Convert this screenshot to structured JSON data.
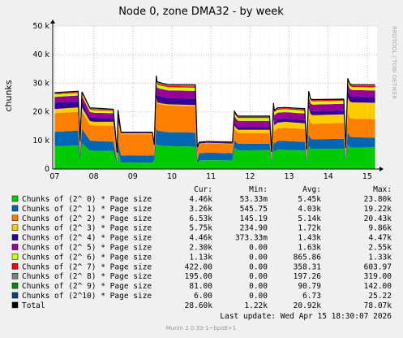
{
  "chart_data": {
    "type": "area",
    "title": "Node 0, zone DMA32 - by week",
    "ylabel": "chunks",
    "ylim": [
      0,
      50000
    ],
    "yticks": [
      0,
      10000,
      20000,
      30000,
      40000,
      50000
    ],
    "ytick_labels": [
      "0",
      "10 k",
      "20 k",
      "30 k",
      "40 k",
      "50 k"
    ],
    "xtick_labels": [
      "07",
      "08",
      "09",
      "10",
      "11",
      "12",
      "13",
      "14",
      "15"
    ],
    "x": [
      7.0,
      7.6,
      7.65,
      7.7,
      7.9,
      8.0,
      8.5,
      8.6,
      8.62,
      8.7,
      8.9,
      9.5,
      9.55,
      9.6,
      9.62,
      9.7,
      9.9,
      10.6,
      10.65,
      10.7,
      10.9,
      11.55,
      11.6,
      11.65,
      11.7,
      12.5,
      12.55,
      12.6,
      12.62,
      12.7,
      12.9,
      13.4,
      13.45,
      13.5,
      13.55,
      13.6,
      14.4,
      14.45,
      14.5,
      14.55,
      14.6,
      15.2
    ],
    "grid": true,
    "series": [
      {
        "name": "Chunks of (2^ 0) * Page size",
        "color": "#00cc00",
        "values": [
          8000,
          8200,
          3000,
          9000,
          6500,
          6400,
          6300,
          1500,
          6000,
          2200,
          2300,
          2200,
          3000,
          9000,
          8500,
          8200,
          8000,
          7800,
          2000,
          3000,
          3100,
          3000,
          7500,
          7000,
          6500,
          6600,
          1800,
          7000,
          6000,
          6800,
          6700,
          6500,
          2000,
          8000,
          7200,
          7000,
          7100,
          2200,
          8500,
          7600,
          7500,
          7600
        ]
      },
      {
        "name": "Chunks of (2^ 1) * Page size",
        "color": "#0066b3",
        "values": [
          5000,
          5200,
          1800,
          5000,
          3500,
          3400,
          3300,
          1000,
          3500,
          2500,
          2500,
          2500,
          1800,
          5500,
          5000,
          5000,
          4900,
          4900,
          1200,
          2500,
          2600,
          2500,
          2500,
          2300,
          2300,
          2300,
          1000,
          3000,
          2800,
          3000,
          3100,
          3000,
          1000,
          4000,
          3500,
          3400,
          3500,
          1200,
          4500,
          3800,
          3700,
          3300
        ]
      },
      {
        "name": "Chunks of (2^ 2) * Page size",
        "color": "#ff8000",
        "values": [
          6500,
          6600,
          2500,
          6000,
          5500,
          5400,
          5500,
          1500,
          5500,
          7500,
          7400,
          7500,
          2500,
          10000,
          9500,
          9400,
          9300,
          9300,
          2500,
          3200,
          3300,
          3200,
          4000,
          3900,
          3800,
          3700,
          1200,
          5000,
          4500,
          4400,
          4600,
          4500,
          1500,
          6000,
          5500,
          5400,
          5500,
          1500,
          7000,
          6500,
          6400,
          6500
        ]
      },
      {
        "name": "Chunks of (2^ 3) * Page size",
        "color": "#ffcc00",
        "values": [
          1500,
          1500,
          500,
          1500,
          1300,
          1300,
          1400,
          400,
          1500,
          300,
          300,
          300,
          200,
          500,
          400,
          400,
          400,
          400,
          100,
          200,
          200,
          200,
          1200,
          1100,
          1100,
          1100,
          400,
          2500,
          2000,
          2000,
          2100,
          2000,
          600,
          3500,
          3000,
          3000,
          3000,
          800,
          5000,
          5800,
          5700,
          5750
        ]
      },
      {
        "name": "Chunks of (2^ 4) * Page size",
        "color": "#330099",
        "values": [
          2200,
          2200,
          700,
          2000,
          1400,
          1400,
          1300,
          400,
          1200,
          150,
          150,
          150,
          300,
          2500,
          2300,
          2300,
          2200,
          2200,
          600,
          300,
          300,
          300,
          1000,
          950,
          950,
          950,
          300,
          1200,
          1100,
          1100,
          1100,
          1100,
          400,
          1500,
          1400,
          1400,
          1400,
          500,
          2500,
          2100,
          2000,
          2000
        ]
      },
      {
        "name": "Chunks of (2^ 5) * Page size",
        "color": "#990099",
        "values": [
          2000,
          2000,
          700,
          2000,
          1800,
          1800,
          1700,
          500,
          1500,
          50,
          50,
          50,
          300,
          3000,
          2800,
          2800,
          2700,
          2700,
          700,
          100,
          100,
          100,
          2300,
          2200,
          2200,
          2200,
          700,
          2500,
          2400,
          2400,
          2300,
          2300,
          800,
          2300,
          2300,
          2300,
          2300,
          700,
          2400,
          2300,
          2300,
          2300
        ]
      },
      {
        "name": "Chunks of (2^ 6) * Page size",
        "color": "#ccff00",
        "values": [
          900,
          900,
          300,
          900,
          800,
          800,
          800,
          200,
          800,
          50,
          50,
          50,
          200,
          1200,
          1100,
          1100,
          1100,
          1100,
          300,
          50,
          50,
          50,
          1000,
          950,
          950,
          950,
          300,
          1100,
          1000,
          1000,
          1000,
          1000,
          300,
          1100,
          1100,
          1100,
          1100,
          300,
          1100,
          1100,
          1100,
          1100
        ]
      },
      {
        "name": "Chunks of (2^ 7) * Page size",
        "color": "#ff0000",
        "values": [
          350,
          350,
          100,
          350,
          330,
          330,
          320,
          100,
          320,
          20,
          20,
          20,
          100,
          500,
          480,
          480,
          470,
          470,
          130,
          20,
          20,
          20,
          400,
          390,
          390,
          390,
          130,
          430,
          420,
          420,
          420,
          420,
          140,
          440,
          430,
          430,
          430,
          140,
          430,
          420,
          420,
          420
        ]
      },
      {
        "name": "Chunks of (2^ 8) * Page size",
        "color": "#808080",
        "values": [
          190,
          190,
          60,
          190,
          180,
          180,
          180,
          60,
          180,
          10,
          10,
          10,
          60,
          260,
          250,
          250,
          250,
          250,
          70,
          10,
          10,
          10,
          210,
          200,
          200,
          200,
          70,
          220,
          210,
          210,
          210,
          210,
          70,
          210,
          200,
          200,
          200,
          70,
          200,
          195,
          195,
          195
        ]
      },
      {
        "name": "Chunks of (2^ 9) * Page size",
        "color": "#008f00",
        "values": [
          90,
          90,
          30,
          90,
          85,
          85,
          85,
          30,
          85,
          5,
          5,
          5,
          30,
          120,
          115,
          115,
          115,
          115,
          30,
          5,
          5,
          5,
          95,
          90,
          90,
          90,
          30,
          100,
          95,
          95,
          95,
          95,
          30,
          90,
          85,
          85,
          85,
          30,
          85,
          82,
          81,
          81
        ]
      },
      {
        "name": "Chunks of (2^10) * Page size",
        "color": "#00487d",
        "values": [
          7,
          7,
          2,
          7,
          6,
          6,
          6,
          2,
          6,
          1,
          1,
          1,
          2,
          10,
          9,
          9,
          9,
          9,
          3,
          1,
          1,
          1,
          7,
          7,
          7,
          7,
          2,
          7,
          7,
          7,
          7,
          7,
          2,
          7,
          7,
          7,
          7,
          2,
          6,
          6,
          6,
          6
        ]
      }
    ],
    "total_line": {
      "name": "Total",
      "color": "#000000",
      "values": [
        26700,
        27200,
        9700,
        27000,
        21400,
        21300,
        20900,
        5700,
        20600,
        12800,
        12800,
        12800,
        8500,
        32600,
        30500,
        30200,
        29500,
        29500,
        7600,
        9400,
        9600,
        9400,
        20200,
        19100,
        18500,
        18500,
        6000,
        23100,
        20500,
        21400,
        21500,
        21100,
        6800,
        27200,
        24500,
        24300,
        24400,
        7400,
        31700,
        29800,
        29500,
        29400
      ]
    }
  },
  "rrdtool_label": "RRDTOOL / TOBI OETIKER",
  "legend_headers": [
    "Cur:",
    "Min:",
    "Avg:",
    "Max:"
  ],
  "legend_rows": [
    {
      "color": "#00cc00",
      "label": "Chunks of (2^ 0) * Page size",
      "cur": "4.46k",
      "min": "53.33m",
      "avg": "5.45k",
      "max": "23.80k"
    },
    {
      "color": "#0066b3",
      "label": "Chunks of (2^ 1) * Page size",
      "cur": "3.26k",
      "min": "545.75",
      "avg": "4.03k",
      "max": "19.22k"
    },
    {
      "color": "#ff8000",
      "label": "Chunks of (2^ 2) * Page size",
      "cur": "6.53k",
      "min": "145.19",
      "avg": "5.14k",
      "max": "20.43k"
    },
    {
      "color": "#ffcc00",
      "label": "Chunks of (2^ 3) * Page size",
      "cur": "5.75k",
      "min": "234.90",
      "avg": "1.72k",
      "max": "9.86k"
    },
    {
      "color": "#330099",
      "label": "Chunks of (2^ 4) * Page size",
      "cur": "4.46k",
      "min": "373.33m",
      "avg": "1.43k",
      "max": "4.47k"
    },
    {
      "color": "#990099",
      "label": "Chunks of (2^ 5) * Page size",
      "cur": "2.30k",
      "min": "0.00",
      "avg": "1.63k",
      "max": "2.55k"
    },
    {
      "color": "#ccff00",
      "label": "Chunks of (2^ 6) * Page size",
      "cur": "1.13k",
      "min": "0.00",
      "avg": "865.86",
      "max": "1.33k"
    },
    {
      "color": "#ff0000",
      "label": "Chunks of (2^ 7) * Page size",
      "cur": "422.00",
      "min": "0.00",
      "avg": "358.31",
      "max": "603.97"
    },
    {
      "color": "#808080",
      "label": "Chunks of (2^ 8) * Page size",
      "cur": "195.00",
      "min": "0.00",
      "avg": "197.26",
      "max": "319.00"
    },
    {
      "color": "#008f00",
      "label": "Chunks of (2^ 9) * Page size",
      "cur": "81.00",
      "min": "0.00",
      "avg": "90.79",
      "max": "142.00"
    },
    {
      "color": "#00487d",
      "label": "Chunks of (2^10) * Page size",
      "cur": "6.00",
      "min": "0.00",
      "avg": "6.73",
      "max": "25.22"
    },
    {
      "color": "#000000",
      "label": "Total",
      "cur": "28.60k",
      "min": "1.22k",
      "avg": "20.92k",
      "max": "78.07k"
    }
  ],
  "last_update": "Last update: Wed Apr 15 18:30:07 2026",
  "footer": "Munin 2.0.33-1~bpo8+1"
}
